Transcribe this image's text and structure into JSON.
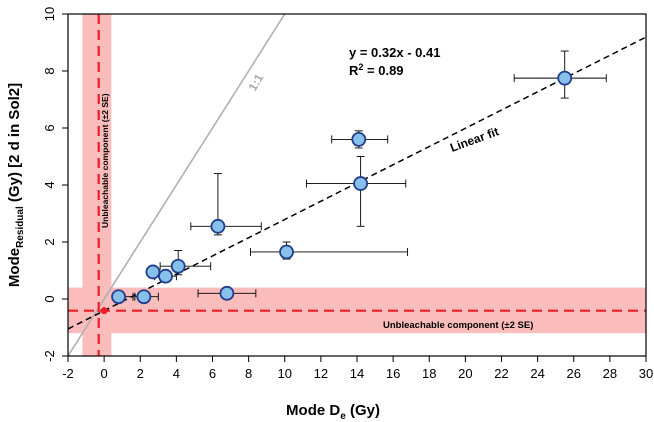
{
  "chart_data": {
    "type": "scatter",
    "xlabel": {
      "main": "Mode D",
      "sub": "e",
      "unit": " (Gy)"
    },
    "ylabel": {
      "main": "Mode",
      "sub": "Residual",
      "unit": " (Gy) [2 d in Sol2]"
    },
    "xlim": [
      -2,
      30
    ],
    "ylim": [
      -2,
      10
    ],
    "xticks": [
      -2,
      0,
      2,
      4,
      6,
      8,
      10,
      12,
      14,
      16,
      18,
      20,
      22,
      24,
      26,
      28,
      30
    ],
    "yticks": [
      -2,
      0,
      2,
      4,
      6,
      8,
      10
    ],
    "grid": false,
    "points": [
      {
        "x": 0.8,
        "y": 0.08,
        "xerr": [
          0.3,
          0.8
        ],
        "yerr": [
          0.1,
          0.1
        ]
      },
      {
        "x": 2.2,
        "y": 0.08,
        "xerr": [
          0.5,
          0.8
        ],
        "yerr": [
          0.1,
          0.1
        ]
      },
      {
        "x": 2.7,
        "y": 0.95,
        "xerr": [
          0.2,
          0.2
        ],
        "yerr": [
          0.1,
          0.1
        ]
      },
      {
        "x": 3.4,
        "y": 0.8,
        "xerr": [
          0.6,
          0.6
        ],
        "yerr": [
          0.1,
          0.1
        ]
      },
      {
        "x": 4.1,
        "y": 1.15,
        "xerr": [
          1.0,
          1.8
        ],
        "yerr": [
          0.3,
          0.55
        ]
      },
      {
        "x": 6.3,
        "y": 2.55,
        "xerr": [
          1.5,
          2.4
        ],
        "yerr": [
          0.3,
          1.85
        ]
      },
      {
        "x": 6.8,
        "y": 0.2,
        "xerr": [
          1.6,
          1.6
        ],
        "yerr": [
          0.1,
          0.1
        ]
      },
      {
        "x": 10.1,
        "y": 1.65,
        "xerr": [
          2.0,
          6.7
        ],
        "yerr": [
          0.25,
          0.35
        ]
      },
      {
        "x": 14.1,
        "y": 5.6,
        "xerr": [
          1.5,
          1.6
        ],
        "yerr": [
          0.3,
          0.3
        ]
      },
      {
        "x": 14.2,
        "y": 4.05,
        "xerr": [
          3.0,
          2.5
        ],
        "yerr": [
          1.5,
          0.95
        ]
      },
      {
        "x": 25.5,
        "y": 7.75,
        "xerr": [
          2.8,
          2.3
        ],
        "yerr": [
          0.7,
          0.95
        ]
      }
    ],
    "unbleachable_point": {
      "x": 0,
      "y": -0.41
    },
    "vertical_component": {
      "x": -0.3,
      "band": [
        -1.2,
        0.4
      ],
      "label": "Unbleachable component (±2 SE)"
    },
    "horizontal_component": {
      "y": -0.41,
      "band": [
        -1.2,
        0.4
      ],
      "label": "Unbleachable component (±2 SE)"
    },
    "one_to_one": {
      "label": "1:1"
    },
    "fit": {
      "slope": 0.32,
      "intercept": -0.41,
      "label": "Linear fit",
      "equation": "y = 0.32x - 0.41",
      "r2_main": "R",
      "r2_sup": "2",
      "r2_rest": " = 0.89"
    },
    "colors": {
      "point_fill": "#88c0ec",
      "point_stroke": "#1f3d8a",
      "band": "#fbbcbc",
      "dashed_red": "#e8202a",
      "one_to_one": "#b0b0b0",
      "fit": "#000000"
    }
  }
}
